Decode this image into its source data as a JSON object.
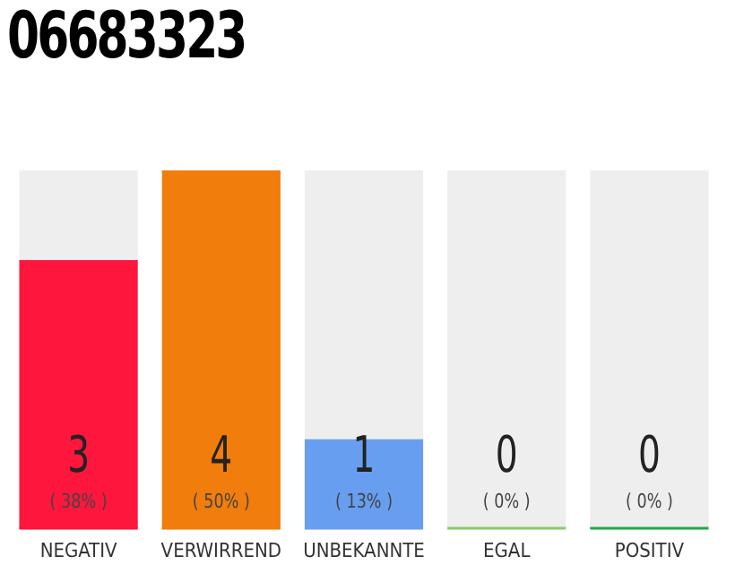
{
  "chart_data": {
    "type": "bar",
    "title": "06683323",
    "categories": [
      "NEGATIV",
      "VERWIRREND",
      "UNBEKANNTE",
      "EGAL",
      "POSITIV"
    ],
    "values": [
      3,
      4,
      1,
      0,
      0
    ],
    "colors": [
      "#ff163c",
      "#f07d0c",
      "#679ef0",
      "#88cc66",
      "#22aa44"
    ],
    "tick_labels": "x",
    "grid": false,
    "legend": false,
    "value_labels": [
      "3\n( 38% )",
      "4\n( 50% )",
      "1\n( 13% )",
      "0\n( 0% )",
      "0\n( 0% )"
    ]
  }
}
